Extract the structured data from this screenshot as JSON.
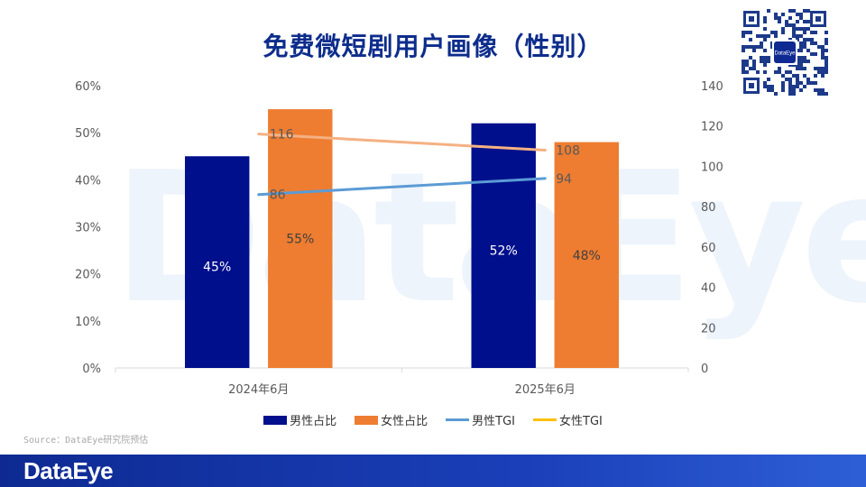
{
  "title": "免费微短剧用户画像（性别）",
  "source": "Source：DataEye研究院预估",
  "brand": "DataEye",
  "watermark": "DataEye",
  "qr_label": "DataEye",
  "colors": {
    "male_bar": "#000f8c",
    "female_bar": "#ee7d31",
    "male_tgi": "#5b9bd5",
    "female_tgi_line": "#f4b183",
    "female_tgi_legend": "#ffc000",
    "title": "#0d2d8c",
    "footer": "#1a3fb8"
  },
  "chart_data": {
    "type": "bar",
    "categories": [
      "2024年6月",
      "2025年6月"
    ],
    "series": [
      {
        "name": "男性占比",
        "type": "bar",
        "axis": "left",
        "values": [
          45,
          52
        ],
        "labels": [
          "45%",
          "52%"
        ]
      },
      {
        "name": "女性占比",
        "type": "bar",
        "axis": "left",
        "values": [
          55,
          48
        ],
        "labels": [
          "55%",
          "48%"
        ]
      },
      {
        "name": "男性TGI",
        "type": "line",
        "axis": "right",
        "values": [
          86,
          94
        ],
        "labels": [
          "86",
          "94"
        ]
      },
      {
        "name": "女性TGI",
        "type": "line",
        "axis": "right",
        "values": [
          116,
          108
        ],
        "labels": [
          "116",
          "108"
        ]
      }
    ],
    "y_left": {
      "min": 0,
      "max": 60,
      "step": 10,
      "ticks": [
        "0%",
        "10%",
        "20%",
        "30%",
        "40%",
        "50%",
        "60%"
      ]
    },
    "y_right": {
      "min": 0,
      "max": 140,
      "step": 20,
      "ticks": [
        "0",
        "20",
        "40",
        "60",
        "80",
        "100",
        "120",
        "140"
      ]
    },
    "grid": false,
    "legend_position": "bottom"
  },
  "legend": [
    {
      "label": "男性占比",
      "kind": "bar",
      "color": "#000f8c"
    },
    {
      "label": "女性占比",
      "kind": "bar",
      "color": "#ee7d31"
    },
    {
      "label": "男性TGI",
      "kind": "line",
      "color": "#5b9bd5"
    },
    {
      "label": "女性TGI",
      "kind": "line",
      "color": "#ffc000"
    }
  ]
}
